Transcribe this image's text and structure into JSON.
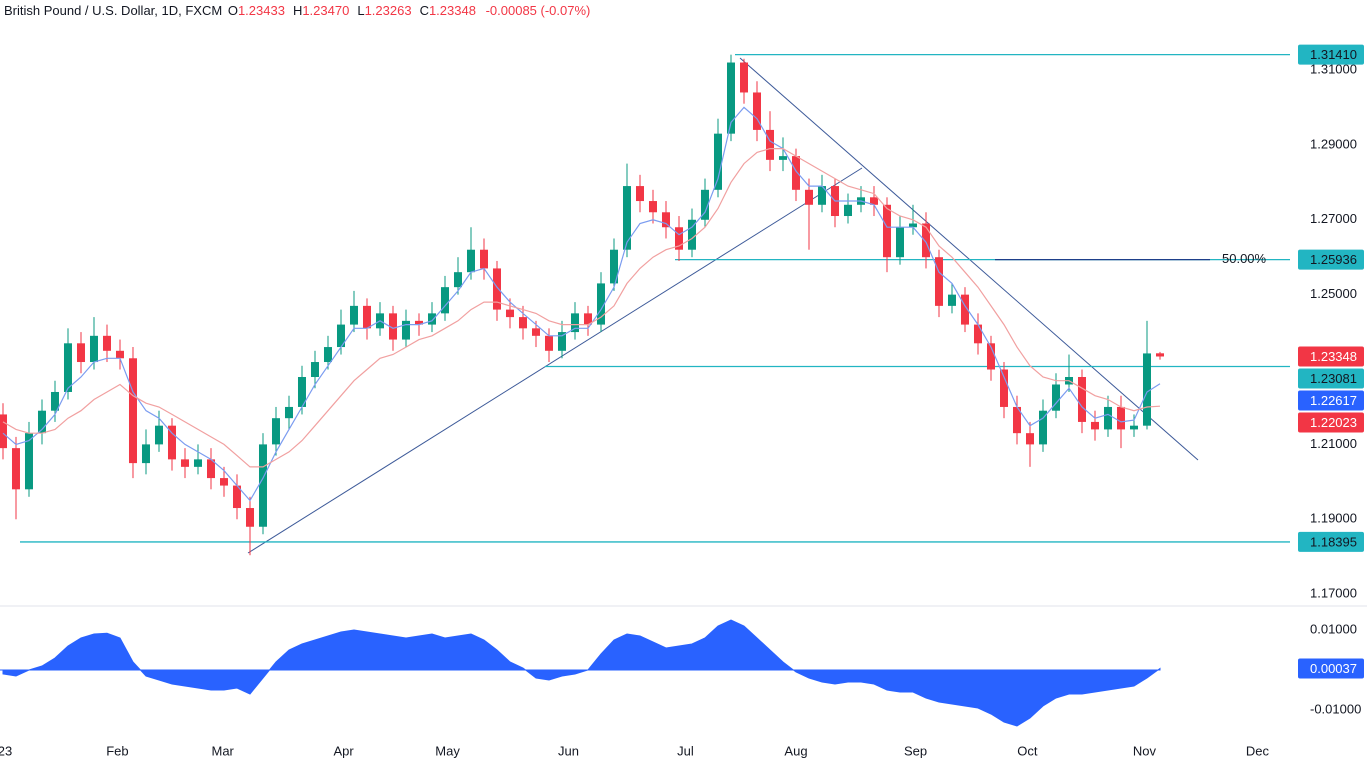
{
  "header": {
    "title": "British Pound / U.S. Dollar, 1D, FXCM",
    "fields": [
      {
        "key": "O",
        "value": "1.23433"
      },
      {
        "key": "H",
        "value": "1.23470"
      },
      {
        "key": "L",
        "value": "1.23263"
      },
      {
        "key": "C",
        "value": "1.23348"
      }
    ],
    "change": "-0.00085 (-0.07%)"
  },
  "chart_data": [
    {
      "type": "candlestick",
      "open": [
        1.218,
        1.209,
        1.198,
        1.213,
        1.219,
        1.224,
        1.237,
        1.232,
        1.239,
        1.235,
        1.233,
        1.205,
        1.21,
        1.215,
        1.206,
        1.204,
        1.206,
        1.201,
        1.199,
        1.193,
        1.188,
        1.21,
        1.217,
        1.22,
        1.228,
        1.232,
        1.236,
        1.242,
        1.247,
        1.241,
        1.245,
        1.238,
        1.243,
        1.242,
        1.245,
        1.252,
        1.256,
        1.262,
        1.257,
        1.246,
        1.244,
        1.241,
        1.239,
        1.235,
        1.24,
        1.245,
        1.242,
        1.253,
        1.262,
        1.279,
        1.275,
        1.272,
        1.268,
        1.262,
        1.27,
        1.278,
        1.293,
        1.312,
        1.304,
        1.294,
        1.286,
        1.287,
        1.278,
        1.274,
        1.279,
        1.271,
        1.274,
        1.276,
        1.274,
        1.26,
        1.268,
        1.269,
        1.26,
        1.247,
        1.25,
        1.242,
        1.237,
        1.23,
        1.22,
        1.213,
        1.21,
        1.219,
        1.226,
        1.228,
        1.216,
        1.214,
        1.22,
        1.214,
        1.215,
        1.23433
      ],
      "high": [
        1.221,
        1.212,
        1.216,
        1.222,
        1.227,
        1.241,
        1.24,
        1.244,
        1.242,
        1.238,
        1.236,
        1.214,
        1.219,
        1.217,
        1.209,
        1.21,
        1.209,
        1.204,
        1.202,
        1.196,
        1.213,
        1.22,
        1.223,
        1.231,
        1.235,
        1.239,
        1.246,
        1.251,
        1.249,
        1.248,
        1.247,
        1.246,
        1.245,
        1.248,
        1.255,
        1.26,
        1.268,
        1.265,
        1.259,
        1.249,
        1.247,
        1.243,
        1.241,
        1.243,
        1.248,
        1.247,
        1.256,
        1.265,
        1.285,
        1.282,
        1.278,
        1.275,
        1.271,
        1.273,
        1.281,
        1.297,
        1.3141,
        1.313,
        1.307,
        1.299,
        1.292,
        1.289,
        1.281,
        1.282,
        1.281,
        1.277,
        1.279,
        1.279,
        1.276,
        1.271,
        1.274,
        1.272,
        1.262,
        1.253,
        1.252,
        1.245,
        1.239,
        1.232,
        1.223,
        1.216,
        1.222,
        1.229,
        1.234,
        1.23,
        1.219,
        1.223,
        1.223,
        1.218,
        1.243,
        1.2347
      ],
      "low": [
        1.206,
        1.19,
        1.196,
        1.21,
        1.216,
        1.222,
        1.229,
        1.23,
        1.232,
        1.23,
        1.201,
        1.202,
        1.208,
        1.203,
        1.201,
        1.202,
        1.198,
        1.196,
        1.19,
        1.1804,
        1.186,
        1.207,
        1.214,
        1.218,
        1.225,
        1.23,
        1.234,
        1.24,
        1.238,
        1.239,
        1.235,
        1.236,
        1.239,
        1.24,
        1.243,
        1.25,
        1.254,
        1.254,
        1.243,
        1.241,
        1.238,
        1.236,
        1.232,
        1.233,
        1.238,
        1.239,
        1.24,
        1.251,
        1.26,
        1.272,
        1.269,
        1.265,
        1.259,
        1.26,
        1.268,
        1.276,
        1.291,
        1.301,
        1.291,
        1.283,
        1.283,
        1.275,
        1.262,
        1.272,
        1.268,
        1.269,
        1.272,
        1.271,
        1.256,
        1.258,
        1.266,
        1.257,
        1.244,
        1.245,
        1.24,
        1.234,
        1.227,
        1.217,
        1.21,
        1.204,
        1.208,
        1.217,
        1.224,
        1.213,
        1.211,
        1.212,
        1.209,
        1.212,
        1.214,
        1.23263
      ],
      "close": [
        1.209,
        1.198,
        1.213,
        1.219,
        1.224,
        1.237,
        1.232,
        1.239,
        1.235,
        1.233,
        1.205,
        1.21,
        1.215,
        1.206,
        1.204,
        1.206,
        1.201,
        1.199,
        1.193,
        1.188,
        1.21,
        1.217,
        1.22,
        1.228,
        1.232,
        1.236,
        1.242,
        1.247,
        1.241,
        1.245,
        1.238,
        1.243,
        1.242,
        1.245,
        1.252,
        1.256,
        1.262,
        1.257,
        1.246,
        1.244,
        1.241,
        1.239,
        1.235,
        1.24,
        1.245,
        1.242,
        1.253,
        1.262,
        1.279,
        1.275,
        1.272,
        1.268,
        1.262,
        1.27,
        1.278,
        1.293,
        1.312,
        1.304,
        1.294,
        1.286,
        1.287,
        1.278,
        1.274,
        1.279,
        1.271,
        1.274,
        1.276,
        1.274,
        1.26,
        1.268,
        1.269,
        1.26,
        1.247,
        1.25,
        1.242,
        1.237,
        1.23,
        1.22,
        1.213,
        1.21,
        1.219,
        1.226,
        1.228,
        1.216,
        1.214,
        1.22,
        1.214,
        1.215,
        1.2343,
        1.23348
      ],
      "up_color": "#089981",
      "down_color": "#f23645",
      "lines": [
        {
          "color": "#7b9cf0",
          "values": [
            1.213,
            1.21,
            1.211,
            1.214,
            1.218,
            1.225,
            1.228,
            1.232,
            1.233,
            1.233,
            1.224,
            1.219,
            1.217,
            1.213,
            1.21,
            1.208,
            1.206,
            1.203,
            1.199,
            1.195,
            1.201,
            1.208,
            1.214,
            1.22,
            1.226,
            1.231,
            1.236,
            1.241,
            1.241,
            1.243,
            1.241,
            1.242,
            1.242,
            1.243,
            1.247,
            1.251,
            1.256,
            1.257,
            1.252,
            1.248,
            1.245,
            1.242,
            1.239,
            1.239,
            1.241,
            1.241,
            1.246,
            1.252,
            1.264,
            1.269,
            1.27,
            1.269,
            1.266,
            1.268,
            1.272,
            1.281,
            1.296,
            1.3,
            1.297,
            1.291,
            1.289,
            1.283,
            1.279,
            1.279,
            1.275,
            1.275,
            1.275,
            1.274,
            1.268,
            1.268,
            1.268,
            1.264,
            1.256,
            1.253,
            1.247,
            1.242,
            1.236,
            1.228,
            1.22,
            1.215,
            1.217,
            1.221,
            1.225,
            1.22,
            1.217,
            1.218,
            1.216,
            1.2165,
            1.224,
            1.2262
          ]
        },
        {
          "color": "#f1a0a0",
          "values": [
            1.216,
            1.214,
            1.213,
            1.213,
            1.214,
            1.217,
            1.219,
            1.222,
            1.224,
            1.226,
            1.223,
            1.221,
            1.22,
            1.218,
            1.216,
            1.214,
            1.212,
            1.21,
            1.207,
            1.204,
            1.204,
            1.206,
            1.208,
            1.211,
            1.215,
            1.219,
            1.223,
            1.227,
            1.23,
            1.233,
            1.234,
            1.236,
            1.238,
            1.239,
            1.241,
            1.243,
            1.246,
            1.248,
            1.248,
            1.247,
            1.246,
            1.245,
            1.243,
            1.242,
            1.242,
            1.242,
            1.244,
            1.247,
            1.253,
            1.257,
            1.26,
            1.262,
            1.263,
            1.265,
            1.268,
            1.273,
            1.28,
            1.285,
            1.288,
            1.289,
            1.289,
            1.287,
            1.285,
            1.283,
            1.281,
            1.279,
            1.278,
            1.277,
            1.273,
            1.271,
            1.27,
            1.268,
            1.263,
            1.26,
            1.256,
            1.252,
            1.247,
            1.242,
            1.236,
            1.231,
            1.228,
            1.227,
            1.227,
            1.225,
            1.223,
            1.222,
            1.22,
            1.219,
            1.22,
            1.2202
          ]
        }
      ],
      "xlim": [
        -0.23,
        99
      ],
      "xticks": [
        {
          "value": 0.15,
          "label": "23"
        },
        {
          "value": 8.8,
          "label": "Feb"
        },
        {
          "value": 16.9,
          "label": "Mar"
        },
        {
          "value": 26.2,
          "label": "Apr"
        },
        {
          "value": 34.2,
          "label": "May"
        },
        {
          "value": 43.5,
          "label": "Jun"
        },
        {
          "value": 52.5,
          "label": "Jul"
        },
        {
          "value": 61,
          "label": "Aug"
        },
        {
          "value": 70.2,
          "label": "Sep"
        },
        {
          "value": 78.8,
          "label": "Oct"
        },
        {
          "value": 87.8,
          "label": "Nov"
        },
        {
          "value": 96.5,
          "label": "Dec"
        }
      ],
      "ylim": [
        1.1671,
        1.3287
      ],
      "yticks": [
        {
          "value": 1.31,
          "label": "1.31000"
        },
        {
          "value": 1.29,
          "label": "1.29000"
        },
        {
          "value": 1.27,
          "label": "1.27000"
        },
        {
          "value": 1.25,
          "label": "1.25000"
        },
        {
          "value": 1.21,
          "label": "1.21000"
        },
        {
          "value": 1.19,
          "label": "1.19000"
        },
        {
          "value": 1.17,
          "label": "1.17000"
        }
      ],
      "level_color": "#22b5c2",
      "levels": [
        {
          "value": 1.3141,
          "label": "1.31410"
        },
        {
          "value": 1.25936,
          "label": "1.25936",
          "note": "50.00%"
        },
        {
          "value": 1.23081,
          "label": "1.23081"
        },
        {
          "value": 1.18395,
          "label": "1.18395"
        }
      ],
      "price_badges": [
        {
          "value": 1.23348,
          "label": "1.23348",
          "color": "#f23645"
        },
        {
          "value": 1.22617,
          "label": "1.22617",
          "color": "#2962ff"
        },
        {
          "value": 1.22023,
          "label": "1.22023",
          "color": "#f23645"
        }
      ]
    },
    {
      "type": "area",
      "color": "#2962ff",
      "values": [
        -0.001,
        -0.0015,
        0.0,
        0.001,
        0.003,
        0.006,
        0.008,
        0.009,
        0.0092,
        0.008,
        0.002,
        -0.0015,
        -0.0025,
        -0.0035,
        -0.004,
        -0.0045,
        -0.005,
        -0.005,
        -0.0045,
        -0.006,
        -0.002,
        0.002,
        0.005,
        0.0065,
        0.0075,
        0.0085,
        0.0095,
        0.01,
        0.0095,
        0.009,
        0.0085,
        0.008,
        0.0085,
        0.009,
        0.008,
        0.0085,
        0.009,
        0.0075,
        0.005,
        0.002,
        0.0005,
        -0.002,
        -0.0025,
        -0.0015,
        -0.001,
        0.0,
        0.004,
        0.0075,
        0.009,
        0.0085,
        0.007,
        0.0055,
        0.006,
        0.0065,
        0.008,
        0.011,
        0.0125,
        0.011,
        0.008,
        0.005,
        0.002,
        -0.0005,
        -0.002,
        -0.003,
        -0.0035,
        -0.003,
        -0.003,
        -0.0035,
        -0.005,
        -0.0055,
        -0.0055,
        -0.007,
        -0.008,
        -0.0085,
        -0.009,
        -0.0095,
        -0.011,
        -0.013,
        -0.014,
        -0.012,
        -0.009,
        -0.007,
        -0.006,
        -0.006,
        -0.0055,
        -0.005,
        -0.0045,
        -0.004,
        -0.002,
        0.00037
      ],
      "ylim": [
        -0.015,
        0.01575
      ],
      "yticks": [
        {
          "value": 0.01,
          "label": "0.01000"
        },
        {
          "value": -0.01,
          "label": "-0.01000"
        }
      ],
      "badge": {
        "value": 0.00037,
        "label": "0.00037"
      }
    }
  ]
}
